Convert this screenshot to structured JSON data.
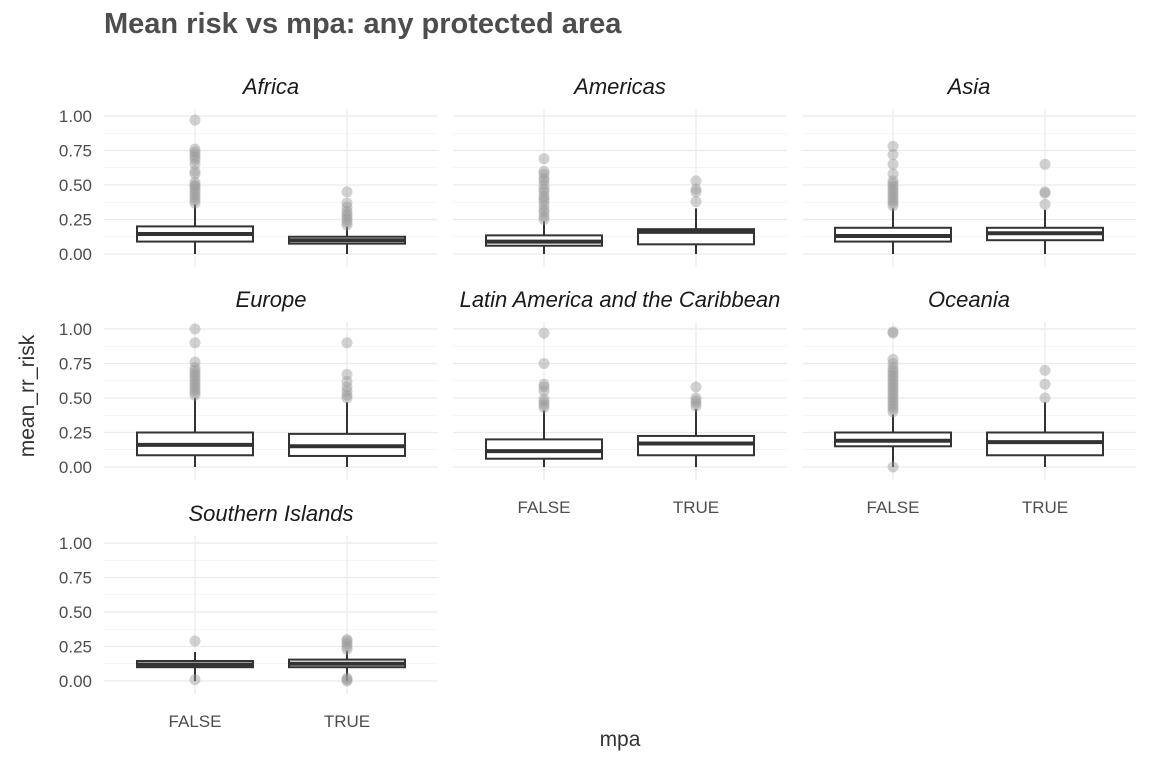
{
  "title": "Mean risk vs mpa: any protected area",
  "chart_data": {
    "type": "boxplot",
    "title": "Mean risk vs mpa: any protected area",
    "xlabel": "mpa",
    "ylabel": "mean_rr_risk",
    "categories": [
      "FALSE",
      "TRUE"
    ],
    "ylim": [
      0,
      1
    ],
    "yticks": [
      "0.00",
      "0.25",
      "0.50",
      "0.75",
      "1.00"
    ],
    "facet_layout": "3 columns, 3 rows",
    "grid": true,
    "colors": {
      "box": "#333333",
      "outlier": "#999999",
      "grid": "#ebebeb"
    },
    "facets": [
      {
        "name": "Africa",
        "boxes": [
          {
            "x": "FALSE",
            "q1": 0.09,
            "median": 0.145,
            "q3": 0.2,
            "lower": 0.0,
            "upper": 0.36,
            "outliers": [
              0.37,
              0.39,
              0.41,
              0.43,
              0.45,
              0.47,
              0.49,
              0.5,
              0.52,
              0.58,
              0.6,
              0.65,
              0.68,
              0.7,
              0.72,
              0.74,
              0.76,
              0.97
            ]
          },
          {
            "x": "TRUE",
            "q1": 0.075,
            "median": 0.1,
            "q3": 0.125,
            "lower": 0.0,
            "upper": 0.2,
            "outliers": [
              0.21,
              0.23,
              0.25,
              0.27,
              0.29,
              0.31,
              0.34,
              0.37,
              0.45
            ]
          }
        ]
      },
      {
        "name": "Americas",
        "boxes": [
          {
            "x": "FALSE",
            "q1": 0.06,
            "median": 0.09,
            "q3": 0.135,
            "lower": 0.0,
            "upper": 0.24,
            "outliers": [
              0.25,
              0.27,
              0.3,
              0.32,
              0.35,
              0.38,
              0.4,
              0.42,
              0.45,
              0.47,
              0.5,
              0.53,
              0.55,
              0.58,
              0.6,
              0.69
            ]
          },
          {
            "x": "TRUE",
            "q1": 0.07,
            "median": 0.16,
            "q3": 0.18,
            "lower": 0.0,
            "upper": 0.33,
            "outliers": [
              0.38,
              0.45,
              0.47,
              0.53
            ]
          }
        ]
      },
      {
        "name": "Asia",
        "boxes": [
          {
            "x": "FALSE",
            "q1": 0.09,
            "median": 0.13,
            "q3": 0.19,
            "lower": 0.0,
            "upper": 0.33,
            "outliers": [
              0.35,
              0.37,
              0.39,
              0.41,
              0.43,
              0.45,
              0.47,
              0.49,
              0.51,
              0.53,
              0.58,
              0.65,
              0.72,
              0.78
            ]
          },
          {
            "x": "TRUE",
            "q1": 0.1,
            "median": 0.15,
            "q3": 0.19,
            "lower": 0.0,
            "upper": 0.32,
            "outliers": [
              0.36,
              0.44,
              0.45,
              0.65
            ]
          }
        ]
      },
      {
        "name": "Europe",
        "boxes": [
          {
            "x": "FALSE",
            "q1": 0.085,
            "median": 0.16,
            "q3": 0.25,
            "lower": 0.0,
            "upper": 0.5,
            "outliers": [
              0.52,
              0.54,
              0.56,
              0.58,
              0.6,
              0.62,
              0.64,
              0.66,
              0.68,
              0.7,
              0.72,
              0.76,
              0.9,
              1.0
            ]
          },
          {
            "x": "TRUE",
            "q1": 0.08,
            "median": 0.15,
            "q3": 0.24,
            "lower": 0.0,
            "upper": 0.47,
            "outliers": [
              0.5,
              0.52,
              0.55,
              0.58,
              0.62,
              0.67,
              0.9
            ]
          }
        ]
      },
      {
        "name": "Latin America and the Caribbean",
        "boxes": [
          {
            "x": "FALSE",
            "q1": 0.06,
            "median": 0.115,
            "q3": 0.2,
            "lower": 0.0,
            "upper": 0.41,
            "outliers": [
              0.43,
              0.45,
              0.47,
              0.49,
              0.55,
              0.58,
              0.6,
              0.75,
              0.97
            ]
          },
          {
            "x": "TRUE",
            "q1": 0.085,
            "median": 0.17,
            "q3": 0.225,
            "lower": 0.0,
            "upper": 0.42,
            "outliers": [
              0.44,
              0.46,
              0.48,
              0.5,
              0.58
            ]
          }
        ]
      },
      {
        "name": "Oceania",
        "boxes": [
          {
            "x": "FALSE",
            "q1": 0.15,
            "median": 0.19,
            "q3": 0.25,
            "lower": 0.0,
            "upper": 0.38,
            "outliers": [
              0.0,
              0.4,
              0.42,
              0.44,
              0.46,
              0.48,
              0.5,
              0.52,
              0.54,
              0.56,
              0.58,
              0.6,
              0.62,
              0.64,
              0.66,
              0.68,
              0.7,
              0.72,
              0.75,
              0.78,
              0.97,
              0.98
            ]
          },
          {
            "x": "TRUE",
            "q1": 0.085,
            "median": 0.18,
            "q3": 0.25,
            "lower": 0.0,
            "upper": 0.47,
            "outliers": [
              0.5,
              0.6,
              0.7
            ]
          }
        ]
      },
      {
        "name": "Southern Islands",
        "boxes": [
          {
            "x": "FALSE",
            "q1": 0.1,
            "median": 0.12,
            "q3": 0.145,
            "lower": 0.0,
            "upper": 0.21,
            "outliers": [
              0.01,
              0.29
            ]
          },
          {
            "x": "TRUE",
            "q1": 0.1,
            "median": 0.125,
            "q3": 0.155,
            "lower": 0.0,
            "upper": 0.22,
            "outliers": [
              0.0,
              0.01,
              0.02,
              0.23,
              0.25,
              0.27,
              0.29,
              0.3
            ]
          }
        ]
      }
    ]
  }
}
